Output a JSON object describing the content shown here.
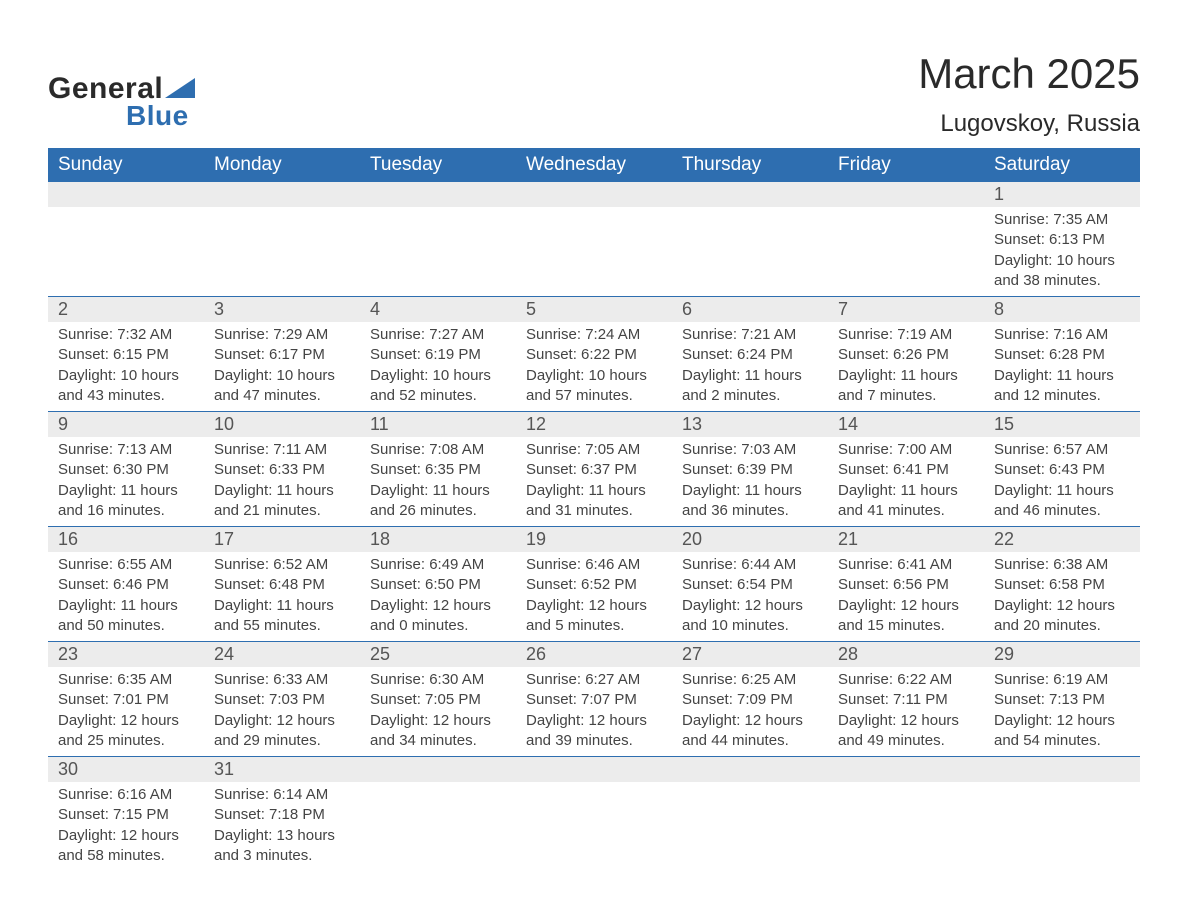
{
  "logo": {
    "text1": "General",
    "text2": "Blue",
    "triangle_color": "#2e6eb0"
  },
  "title": "March 2025",
  "location": "Lugovskoy, Russia",
  "colors": {
    "header_bg": "#2e6eb0",
    "header_text": "#ffffff",
    "daynum_bg": "#ececec",
    "daynum_text": "#555555",
    "body_text": "#444444",
    "border": "#2e6eb0"
  },
  "day_headers": [
    "Sunday",
    "Monday",
    "Tuesday",
    "Wednesday",
    "Thursday",
    "Friday",
    "Saturday"
  ],
  "weeks": [
    [
      null,
      null,
      null,
      null,
      null,
      null,
      {
        "n": "1",
        "sr": "Sunrise: 7:35 AM",
        "ss": "Sunset: 6:13 PM",
        "d1": "Daylight: 10 hours",
        "d2": "and 38 minutes."
      }
    ],
    [
      {
        "n": "2",
        "sr": "Sunrise: 7:32 AM",
        "ss": "Sunset: 6:15 PM",
        "d1": "Daylight: 10 hours",
        "d2": "and 43 minutes."
      },
      {
        "n": "3",
        "sr": "Sunrise: 7:29 AM",
        "ss": "Sunset: 6:17 PM",
        "d1": "Daylight: 10 hours",
        "d2": "and 47 minutes."
      },
      {
        "n": "4",
        "sr": "Sunrise: 7:27 AM",
        "ss": "Sunset: 6:19 PM",
        "d1": "Daylight: 10 hours",
        "d2": "and 52 minutes."
      },
      {
        "n": "5",
        "sr": "Sunrise: 7:24 AM",
        "ss": "Sunset: 6:22 PM",
        "d1": "Daylight: 10 hours",
        "d2": "and 57 minutes."
      },
      {
        "n": "6",
        "sr": "Sunrise: 7:21 AM",
        "ss": "Sunset: 6:24 PM",
        "d1": "Daylight: 11 hours",
        "d2": "and 2 minutes."
      },
      {
        "n": "7",
        "sr": "Sunrise: 7:19 AM",
        "ss": "Sunset: 6:26 PM",
        "d1": "Daylight: 11 hours",
        "d2": "and 7 minutes."
      },
      {
        "n": "8",
        "sr": "Sunrise: 7:16 AM",
        "ss": "Sunset: 6:28 PM",
        "d1": "Daylight: 11 hours",
        "d2": "and 12 minutes."
      }
    ],
    [
      {
        "n": "9",
        "sr": "Sunrise: 7:13 AM",
        "ss": "Sunset: 6:30 PM",
        "d1": "Daylight: 11 hours",
        "d2": "and 16 minutes."
      },
      {
        "n": "10",
        "sr": "Sunrise: 7:11 AM",
        "ss": "Sunset: 6:33 PM",
        "d1": "Daylight: 11 hours",
        "d2": "and 21 minutes."
      },
      {
        "n": "11",
        "sr": "Sunrise: 7:08 AM",
        "ss": "Sunset: 6:35 PM",
        "d1": "Daylight: 11 hours",
        "d2": "and 26 minutes."
      },
      {
        "n": "12",
        "sr": "Sunrise: 7:05 AM",
        "ss": "Sunset: 6:37 PM",
        "d1": "Daylight: 11 hours",
        "d2": "and 31 minutes."
      },
      {
        "n": "13",
        "sr": "Sunrise: 7:03 AM",
        "ss": "Sunset: 6:39 PM",
        "d1": "Daylight: 11 hours",
        "d2": "and 36 minutes."
      },
      {
        "n": "14",
        "sr": "Sunrise: 7:00 AM",
        "ss": "Sunset: 6:41 PM",
        "d1": "Daylight: 11 hours",
        "d2": "and 41 minutes."
      },
      {
        "n": "15",
        "sr": "Sunrise: 6:57 AM",
        "ss": "Sunset: 6:43 PM",
        "d1": "Daylight: 11 hours",
        "d2": "and 46 minutes."
      }
    ],
    [
      {
        "n": "16",
        "sr": "Sunrise: 6:55 AM",
        "ss": "Sunset: 6:46 PM",
        "d1": "Daylight: 11 hours",
        "d2": "and 50 minutes."
      },
      {
        "n": "17",
        "sr": "Sunrise: 6:52 AM",
        "ss": "Sunset: 6:48 PM",
        "d1": "Daylight: 11 hours",
        "d2": "and 55 minutes."
      },
      {
        "n": "18",
        "sr": "Sunrise: 6:49 AM",
        "ss": "Sunset: 6:50 PM",
        "d1": "Daylight: 12 hours",
        "d2": "and 0 minutes."
      },
      {
        "n": "19",
        "sr": "Sunrise: 6:46 AM",
        "ss": "Sunset: 6:52 PM",
        "d1": "Daylight: 12 hours",
        "d2": "and 5 minutes."
      },
      {
        "n": "20",
        "sr": "Sunrise: 6:44 AM",
        "ss": "Sunset: 6:54 PM",
        "d1": "Daylight: 12 hours",
        "d2": "and 10 minutes."
      },
      {
        "n": "21",
        "sr": "Sunrise: 6:41 AM",
        "ss": "Sunset: 6:56 PM",
        "d1": "Daylight: 12 hours",
        "d2": "and 15 minutes."
      },
      {
        "n": "22",
        "sr": "Sunrise: 6:38 AM",
        "ss": "Sunset: 6:58 PM",
        "d1": "Daylight: 12 hours",
        "d2": "and 20 minutes."
      }
    ],
    [
      {
        "n": "23",
        "sr": "Sunrise: 6:35 AM",
        "ss": "Sunset: 7:01 PM",
        "d1": "Daylight: 12 hours",
        "d2": "and 25 minutes."
      },
      {
        "n": "24",
        "sr": "Sunrise: 6:33 AM",
        "ss": "Sunset: 7:03 PM",
        "d1": "Daylight: 12 hours",
        "d2": "and 29 minutes."
      },
      {
        "n": "25",
        "sr": "Sunrise: 6:30 AM",
        "ss": "Sunset: 7:05 PM",
        "d1": "Daylight: 12 hours",
        "d2": "and 34 minutes."
      },
      {
        "n": "26",
        "sr": "Sunrise: 6:27 AM",
        "ss": "Sunset: 7:07 PM",
        "d1": "Daylight: 12 hours",
        "d2": "and 39 minutes."
      },
      {
        "n": "27",
        "sr": "Sunrise: 6:25 AM",
        "ss": "Sunset: 7:09 PM",
        "d1": "Daylight: 12 hours",
        "d2": "and 44 minutes."
      },
      {
        "n": "28",
        "sr": "Sunrise: 6:22 AM",
        "ss": "Sunset: 7:11 PM",
        "d1": "Daylight: 12 hours",
        "d2": "and 49 minutes."
      },
      {
        "n": "29",
        "sr": "Sunrise: 6:19 AM",
        "ss": "Sunset: 7:13 PM",
        "d1": "Daylight: 12 hours",
        "d2": "and 54 minutes."
      }
    ],
    [
      {
        "n": "30",
        "sr": "Sunrise: 6:16 AM",
        "ss": "Sunset: 7:15 PM",
        "d1": "Daylight: 12 hours",
        "d2": "and 58 minutes."
      },
      {
        "n": "31",
        "sr": "Sunrise: 6:14 AM",
        "ss": "Sunset: 7:18 PM",
        "d1": "Daylight: 13 hours",
        "d2": "and 3 minutes."
      },
      null,
      null,
      null,
      null,
      null
    ]
  ]
}
